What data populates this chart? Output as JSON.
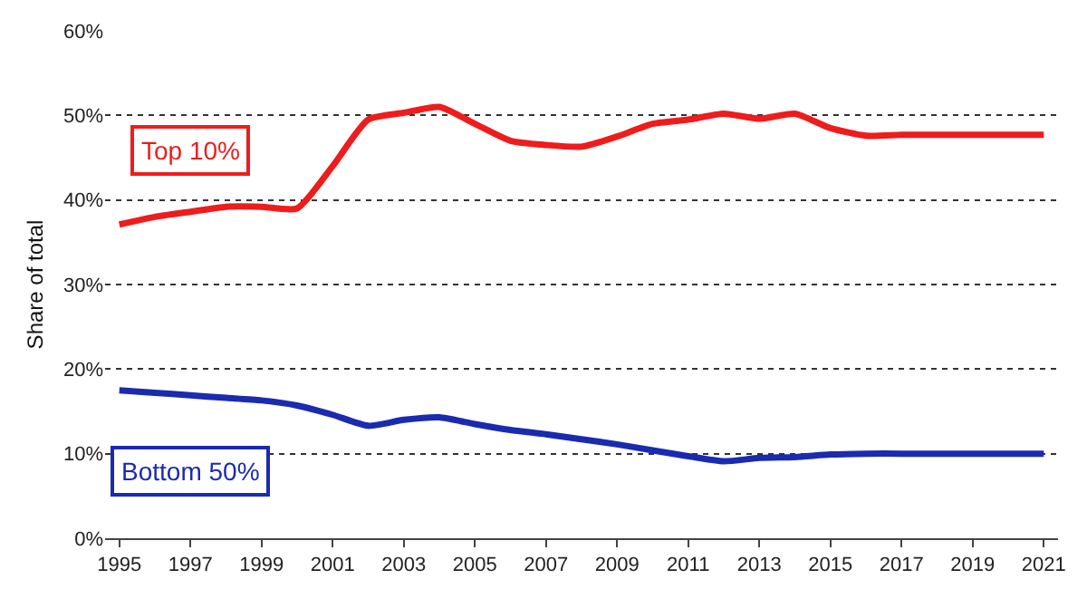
{
  "chart_data": {
    "type": "line",
    "ylabel": "Share of total",
    "x": [
      1995,
      1996,
      1997,
      1998,
      1999,
      2000,
      2001,
      2002,
      2003,
      2004,
      2005,
      2006,
      2007,
      2008,
      2009,
      2010,
      2011,
      2012,
      2013,
      2014,
      2015,
      2016,
      2017,
      2018,
      2019,
      2020,
      2021
    ],
    "series": [
      {
        "name": "Top 10%",
        "color": "#ee1c1c",
        "values": [
          37.1,
          38,
          38.6,
          39.2,
          39.2,
          39,
          44,
          49.5,
          50.3,
          51,
          49,
          47,
          46.5,
          46.3,
          47.5,
          49,
          49.5,
          50.2,
          49.6,
          50.2,
          48.5,
          47.6,
          47.7,
          47.7,
          47.7,
          47.7,
          47.7
        ]
      },
      {
        "name": "Bottom 50%",
        "color": "#1a2bb0",
        "values": [
          17.5,
          17.2,
          16.9,
          16.6,
          16.3,
          15.7,
          14.6,
          13.3,
          14,
          14.3,
          13.5,
          12.8,
          12.3,
          11.7,
          11.1,
          10.4,
          9.7,
          9.1,
          9.5,
          9.6,
          9.9,
          10,
          10,
          10,
          10,
          10,
          10
        ]
      }
    ],
    "xlim": [
      1994.6,
      2021.4
    ],
    "xticks": [
      1995,
      1997,
      1999,
      2001,
      2003,
      2005,
      2007,
      2009,
      2011,
      2013,
      2015,
      2017,
      2019,
      2021
    ],
    "ylim": [
      0,
      60
    ],
    "yticks": [
      {
        "value": 0,
        "label": "0%"
      },
      {
        "value": 10,
        "label": "10%"
      },
      {
        "value": 20,
        "label": "20%"
      },
      {
        "value": 30,
        "label": "30%"
      },
      {
        "value": 40,
        "label": "40%"
      },
      {
        "value": 50,
        "label": "50%"
      },
      {
        "value": 60,
        "label": "60%"
      }
    ],
    "grid": "y",
    "legend": false,
    "line_style": "solid",
    "marker": "none"
  }
}
